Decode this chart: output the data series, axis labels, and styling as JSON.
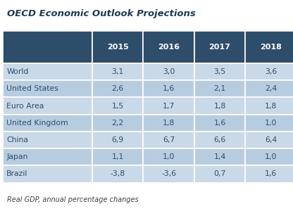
{
  "title": "OECD Economic Outlook Projections",
  "subtitle": "Real GDP, annual percentage changes",
  "columns": [
    "",
    "2015",
    "2016",
    "2017",
    "2018"
  ],
  "rows": [
    [
      "World",
      "3,1",
      "3,0",
      "3,5",
      "3,6"
    ],
    [
      "United States",
      "2,6",
      "1,6",
      "2,1",
      "2,4"
    ],
    [
      "Euro Area",
      "1,5",
      "1,7",
      "1,8",
      "1,8"
    ],
    [
      "United Kingdom",
      "2,2",
      "1,8",
      "1,6",
      "1,0"
    ],
    [
      "China",
      "6,9",
      "6,7",
      "6,6",
      "6,4"
    ],
    [
      "Japan",
      "1,1",
      "1,0",
      "1,4",
      "1,0"
    ],
    [
      "Brazil",
      "-3,8",
      "-3,6",
      "0,7",
      "1,6"
    ]
  ],
  "header_bg": "#2E4D6B",
  "header_text": "#FFFFFF",
  "row_bg_light": "#C9D9E8",
  "row_bg_dark": "#B8CCE0",
  "row_text": "#2E4D6B",
  "title_color": "#1F3A52",
  "subtitle_color": "#404040",
  "border_color": "#FFFFFF",
  "figsize": [
    4.16,
    3.0
  ],
  "dpi": 100
}
